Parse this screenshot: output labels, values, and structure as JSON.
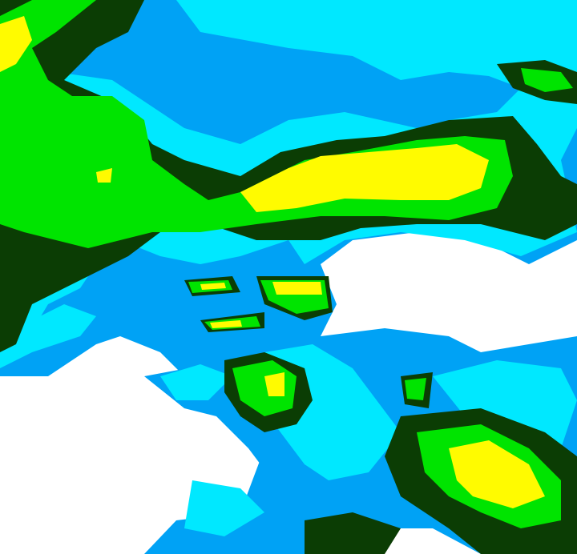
{
  "map": {
    "type": "precipitation-radar-tile",
    "palette": {
      "none": "#ffffff",
      "light_blue": "#00a2f5",
      "cyan": "#00e8ff",
      "dark_green": "#0b3d04",
      "green": "#00e400",
      "yellow": "#fffb00"
    }
  }
}
